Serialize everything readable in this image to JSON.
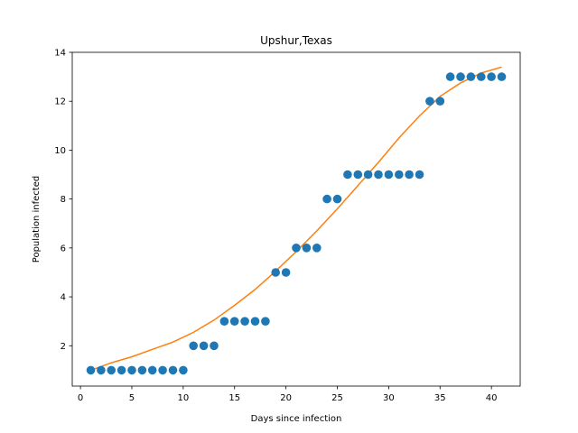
{
  "chart_data": {
    "type": "scatter",
    "title": "Upshur,Texas",
    "xlabel": "Days since infection",
    "ylabel": "Population infected",
    "xlim": [
      -0.8,
      42.8
    ],
    "ylim": [
      0.35,
      14.0
    ],
    "xticks": [
      0,
      5,
      10,
      15,
      20,
      25,
      30,
      35,
      40
    ],
    "yticks": [
      2,
      4,
      6,
      8,
      10,
      12,
      14
    ],
    "grid": false,
    "series": [
      {
        "kind": "points",
        "color": "#1f77b4",
        "x": [
          1,
          2,
          3,
          4,
          5,
          6,
          7,
          8,
          9,
          10,
          11,
          12,
          13,
          14,
          15,
          16,
          17,
          18,
          19,
          20,
          21,
          22,
          23,
          24,
          25,
          26,
          27,
          28,
          29,
          30,
          31,
          32,
          33,
          34,
          35,
          36,
          37,
          38,
          39,
          40,
          41
        ],
        "y": [
          1,
          1,
          1,
          1,
          1,
          1,
          1,
          1,
          1,
          1,
          2,
          2,
          2,
          3,
          3,
          3,
          3,
          3,
          5,
          5,
          6,
          6,
          6,
          8,
          8,
          9,
          9,
          9,
          9,
          9,
          9,
          9,
          9,
          12,
          12,
          13,
          13,
          13,
          13,
          13,
          13
        ]
      },
      {
        "kind": "fit-line",
        "color": "#ff7f0e",
        "x": [
          1,
          3,
          5,
          7,
          9,
          11,
          13,
          15,
          17,
          19,
          21,
          23,
          25,
          27,
          29,
          31,
          33,
          35,
          37,
          39,
          41
        ],
        "y": [
          1.0,
          1.3,
          1.55,
          1.85,
          2.15,
          2.55,
          3.05,
          3.65,
          4.3,
          5.05,
          5.85,
          6.7,
          7.6,
          8.55,
          9.5,
          10.5,
          11.4,
          12.2,
          12.75,
          13.15,
          13.4
        ]
      }
    ]
  }
}
